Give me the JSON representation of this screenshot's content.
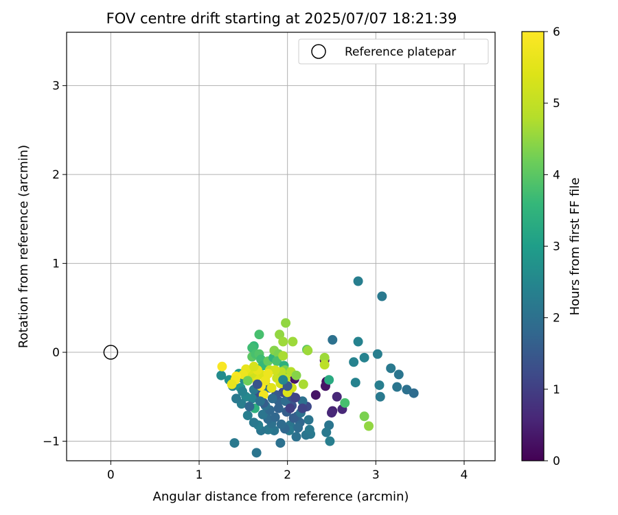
{
  "chart_data": {
    "type": "scatter",
    "title": "FOV centre drift starting at 2025/07/07 18:21:39",
    "xlabel": "Angular distance from reference (arcmin)",
    "ylabel": "Rotation from reference (arcmin)",
    "xlim": [
      -0.5,
      4.35
    ],
    "ylim": [
      -1.22,
      3.6
    ],
    "xticks": [
      0,
      1,
      2,
      3,
      4
    ],
    "yticks": [
      -1,
      0,
      1,
      2,
      3
    ],
    "xtick_labels": [
      "0",
      "1",
      "2",
      "3",
      "4"
    ],
    "ytick_labels": [
      "−1",
      "0",
      "1",
      "2",
      "3"
    ],
    "grid": true,
    "legend": {
      "placement": "top-right",
      "entries": [
        {
          "label": "Reference platepar",
          "marker": "open-circle"
        }
      ]
    },
    "reference_point": {
      "x": 0,
      "y": 0
    },
    "colorbar": {
      "label": "Hours from first FF file",
      "range": [
        0,
        6
      ],
      "ticks": [
        0,
        1,
        2,
        3,
        4,
        5,
        6
      ],
      "tick_labels": [
        "0",
        "1",
        "2",
        "3",
        "4",
        "5",
        "6"
      ],
      "colormap": "viridis"
    },
    "points": [
      {
        "x": 2.8,
        "y": 0.8,
        "h": 2.3
      },
      {
        "x": 3.07,
        "y": 0.63,
        "h": 2.2
      },
      {
        "x": 2.51,
        "y": 0.14,
        "h": 2.0
      },
      {
        "x": 2.8,
        "y": 0.12,
        "h": 2.4
      },
      {
        "x": 3.02,
        "y": -0.02,
        "h": 2.3
      },
      {
        "x": 2.87,
        "y": -0.06,
        "h": 2.4
      },
      {
        "x": 2.75,
        "y": -0.11,
        "h": 2.4
      },
      {
        "x": 2.77,
        "y": -0.34,
        "h": 2.4
      },
      {
        "x": 3.04,
        "y": -0.37,
        "h": 2.3
      },
      {
        "x": 3.17,
        "y": -0.18,
        "h": 2.2
      },
      {
        "x": 3.26,
        "y": -0.25,
        "h": 2.1
      },
      {
        "x": 3.24,
        "y": -0.39,
        "h": 2.1
      },
      {
        "x": 3.35,
        "y": -0.42,
        "h": 2.0
      },
      {
        "x": 3.43,
        "y": -0.46,
        "h": 1.9
      },
      {
        "x": 3.05,
        "y": -0.5,
        "h": 2.2
      },
      {
        "x": 2.42,
        "y": -0.09,
        "h": 0.1
      },
      {
        "x": 2.44,
        "y": -0.33,
        "h": 0.2
      },
      {
        "x": 2.43,
        "y": -0.38,
        "h": 0.3
      },
      {
        "x": 2.32,
        "y": -0.48,
        "h": 0.3
      },
      {
        "x": 2.56,
        "y": -0.5,
        "h": 0.6
      },
      {
        "x": 2.51,
        "y": -0.66,
        "h": 0.5
      },
      {
        "x": 2.5,
        "y": -0.68,
        "h": 0.6
      },
      {
        "x": 2.62,
        "y": -0.64,
        "h": 0.6
      },
      {
        "x": 2.08,
        "y": -0.3,
        "h": 0.3
      },
      {
        "x": 2.22,
        "y": -0.61,
        "h": 1.2
      },
      {
        "x": 2.65,
        "y": -0.57,
        "h": 3.8
      },
      {
        "x": 2.87,
        "y": -0.72,
        "h": 4.3
      },
      {
        "x": 2.92,
        "y": -0.83,
        "h": 4.5
      },
      {
        "x": 2.47,
        "y": -0.31,
        "h": 3.3
      },
      {
        "x": 2.42,
        "y": -0.06,
        "h": 4.6
      },
      {
        "x": 2.42,
        "y": -0.14,
        "h": 4.9
      },
      {
        "x": 2.47,
        "y": -0.82,
        "h": 2.1
      },
      {
        "x": 2.44,
        "y": -0.9,
        "h": 2.2
      },
      {
        "x": 2.48,
        "y": -1.0,
        "h": 2.3
      },
      {
        "x": 2.26,
        "y": -0.92,
        "h": 2.2
      },
      {
        "x": 2.21,
        "y": -0.93,
        "h": 2.1
      },
      {
        "x": 2.25,
        "y": -0.87,
        "h": 2.2
      },
      {
        "x": 2.24,
        "y": -0.76,
        "h": 2.1
      },
      {
        "x": 2.14,
        "y": -0.79,
        "h": 1.8
      },
      {
        "x": 2.1,
        "y": -0.95,
        "h": 2.0
      },
      {
        "x": 2.17,
        "y": -0.55,
        "h": 2.0
      },
      {
        "x": 2.11,
        "y": -0.72,
        "h": 1.7
      },
      {
        "x": 2.03,
        "y": -0.82,
        "h": 2.1
      },
      {
        "x": 2.12,
        "y": -0.85,
        "h": 1.9
      },
      {
        "x": 1.99,
        "y": -0.67,
        "h": 1.6
      },
      {
        "x": 2.05,
        "y": -0.6,
        "h": 1.4
      },
      {
        "x": 2.02,
        "y": -0.88,
        "h": 2.2
      },
      {
        "x": 1.92,
        "y": -1.02,
        "h": 2.0
      },
      {
        "x": 1.97,
        "y": -0.86,
        "h": 1.8
      },
      {
        "x": 1.93,
        "y": -0.81,
        "h": 1.9
      },
      {
        "x": 1.85,
        "y": -0.88,
        "h": 2.1
      },
      {
        "x": 1.78,
        "y": -0.87,
        "h": 2.2
      },
      {
        "x": 1.82,
        "y": -0.8,
        "h": 2.0
      },
      {
        "x": 1.78,
        "y": -0.75,
        "h": 1.9
      },
      {
        "x": 1.7,
        "y": -0.88,
        "h": 2.1
      },
      {
        "x": 1.67,
        "y": -0.82,
        "h": 2.3
      },
      {
        "x": 1.62,
        "y": -0.79,
        "h": 2.2
      },
      {
        "x": 1.55,
        "y": -0.71,
        "h": 2.3
      },
      {
        "x": 1.72,
        "y": -0.7,
        "h": 2.1
      },
      {
        "x": 1.8,
        "y": -0.65,
        "h": 1.8
      },
      {
        "x": 1.75,
        "y": -0.6,
        "h": 2.0
      },
      {
        "x": 1.9,
        "y": -0.55,
        "h": 1.7
      },
      {
        "x": 1.98,
        "y": -0.55,
        "h": 1.9
      },
      {
        "x": 2.05,
        "y": -0.5,
        "h": 1.3
      },
      {
        "x": 1.95,
        "y": -0.45,
        "h": 1.2
      },
      {
        "x": 1.87,
        "y": -0.48,
        "h": 1.5
      },
      {
        "x": 1.8,
        "y": -0.4,
        "h": 1.9
      },
      {
        "x": 1.73,
        "y": -0.43,
        "h": 2.1
      },
      {
        "x": 1.66,
        "y": -0.48,
        "h": 1.3
      },
      {
        "x": 1.62,
        "y": -0.42,
        "h": 2.2
      },
      {
        "x": 1.6,
        "y": -0.52,
        "h": 2.4
      },
      {
        "x": 1.53,
        "y": -0.5,
        "h": 2.5
      },
      {
        "x": 1.48,
        "y": -0.58,
        "h": 2.3
      },
      {
        "x": 1.42,
        "y": -0.52,
        "h": 2.2
      },
      {
        "x": 1.38,
        "y": -0.38,
        "h": 2.4
      },
      {
        "x": 1.34,
        "y": -0.31,
        "h": 2.7
      },
      {
        "x": 1.25,
        "y": -0.26,
        "h": 2.6
      },
      {
        "x": 1.47,
        "y": -0.4,
        "h": 2.8
      },
      {
        "x": 1.5,
        "y": -0.3,
        "h": 2.6
      },
      {
        "x": 1.45,
        "y": -0.24,
        "h": 2.9
      },
      {
        "x": 1.4,
        "y": -1.02,
        "h": 2.2
      },
      {
        "x": 1.65,
        "y": -1.13,
        "h": 2.1
      },
      {
        "x": 1.63,
        "y": -0.63,
        "h": 3.4
      },
      {
        "x": 1.6,
        "y": -0.05,
        "h": 4.0
      },
      {
        "x": 1.62,
        "y": 0.07,
        "h": 3.6
      },
      {
        "x": 1.6,
        "y": 0.05,
        "h": 3.7
      },
      {
        "x": 1.64,
        "y": -0.02,
        "h": 3.8
      },
      {
        "x": 1.68,
        "y": 0.2,
        "h": 3.8
      },
      {
        "x": 1.68,
        "y": -0.02,
        "h": 3.9
      },
      {
        "x": 1.7,
        "y": -0.08,
        "h": 3.7
      },
      {
        "x": 1.72,
        "y": -0.15,
        "h": 3.6
      },
      {
        "x": 1.78,
        "y": -0.1,
        "h": 4.1
      },
      {
        "x": 1.84,
        "y": -0.06,
        "h": 3.5
      },
      {
        "x": 1.85,
        "y": 0.02,
        "h": 4.4
      },
      {
        "x": 1.91,
        "y": 0.2,
        "h": 4.5
      },
      {
        "x": 1.95,
        "y": 0.12,
        "h": 4.6
      },
      {
        "x": 1.98,
        "y": 0.33,
        "h": 4.5
      },
      {
        "x": 2.06,
        "y": 0.12,
        "h": 4.6
      },
      {
        "x": 1.9,
        "y": -0.02,
        "h": 4.3
      },
      {
        "x": 1.88,
        "y": -0.1,
        "h": 3.8
      },
      {
        "x": 1.95,
        "y": -0.04,
        "h": 4.7
      },
      {
        "x": 1.96,
        "y": -0.15,
        "h": 3.4
      },
      {
        "x": 1.97,
        "y": -0.2,
        "h": 4.3
      },
      {
        "x": 2.04,
        "y": -0.22,
        "h": 4.8
      },
      {
        "x": 2.1,
        "y": -0.26,
        "h": 4.4
      },
      {
        "x": 2.22,
        "y": 0.03,
        "h": 4.0
      },
      {
        "x": 2.23,
        "y": 0.02,
        "h": 4.6
      },
      {
        "x": 2.18,
        "y": -0.36,
        "h": 4.7
      },
      {
        "x": 2.05,
        "y": -0.4,
        "h": 5.2
      },
      {
        "x": 1.8,
        "y": -0.2,
        "h": 5.0
      },
      {
        "x": 1.75,
        "y": -0.28,
        "h": 5.3
      },
      {
        "x": 1.7,
        "y": -0.25,
        "h": 5.4
      },
      {
        "x": 1.64,
        "y": -0.3,
        "h": 5.5
      },
      {
        "x": 1.6,
        "y": -0.24,
        "h": 5.2
      },
      {
        "x": 1.57,
        "y": -0.2,
        "h": 5.4
      },
      {
        "x": 1.53,
        "y": -0.19,
        "h": 5.6
      },
      {
        "x": 1.5,
        "y": -0.25,
        "h": 5.7
      },
      {
        "x": 1.42,
        "y": -0.27,
        "h": 5.9
      },
      {
        "x": 1.41,
        "y": -0.31,
        "h": 5.8
      },
      {
        "x": 1.37,
        "y": -0.36,
        "h": 5.6
      },
      {
        "x": 1.26,
        "y": -0.16,
        "h": 5.9
      },
      {
        "x": 1.7,
        "y": -0.38,
        "h": 6.0
      },
      {
        "x": 1.75,
        "y": -0.32,
        "h": 5.7
      },
      {
        "x": 1.73,
        "y": -0.48,
        "h": 5.8
      },
      {
        "x": 1.82,
        "y": -0.4,
        "h": 5.5
      },
      {
        "x": 1.88,
        "y": -0.29,
        "h": 5.1
      },
      {
        "x": 1.92,
        "y": -0.35,
        "h": 5.3
      },
      {
        "x": 1.98,
        "y": -0.3,
        "h": 5.0
      },
      {
        "x": 1.93,
        "y": -0.22,
        "h": 4.9
      },
      {
        "x": 1.86,
        "y": -0.2,
        "h": 5.2
      },
      {
        "x": 2.0,
        "y": -0.45,
        "h": 5.4
      },
      {
        "x": 1.66,
        "y": -0.2,
        "h": 5.6
      },
      {
        "x": 1.62,
        "y": -0.16,
        "h": 5.3
      },
      {
        "x": 1.78,
        "y": -0.24,
        "h": 5.7
      },
      {
        "x": 1.55,
        "y": -0.32,
        "h": 4.2
      },
      {
        "x": 1.66,
        "y": -0.36,
        "h": 1.4
      },
      {
        "x": 1.73,
        "y": -0.57,
        "h": 1.6
      },
      {
        "x": 1.9,
        "y": -0.63,
        "h": 1.7
      },
      {
        "x": 2.0,
        "y": -0.38,
        "h": 1.5
      },
      {
        "x": 1.86,
        "y": -0.73,
        "h": 1.8
      },
      {
        "x": 2.07,
        "y": -0.74,
        "h": 1.6
      },
      {
        "x": 2.15,
        "y": -0.68,
        "h": 2.0
      },
      {
        "x": 2.17,
        "y": -0.63,
        "h": 1.1
      },
      {
        "x": 2.03,
        "y": -0.63,
        "h": 1.0
      },
      {
        "x": 2.09,
        "y": -0.51,
        "h": 1.1
      },
      {
        "x": 1.95,
        "y": -0.31,
        "h": 2.5
      },
      {
        "x": 1.83,
        "y": -0.52,
        "h": 1.9
      },
      {
        "x": 1.69,
        "y": -0.55,
        "h": 2.0
      },
      {
        "x": 1.57,
        "y": -0.61,
        "h": 1.8
      },
      {
        "x": 1.49,
        "y": -0.44,
        "h": 2.4
      }
    ]
  }
}
